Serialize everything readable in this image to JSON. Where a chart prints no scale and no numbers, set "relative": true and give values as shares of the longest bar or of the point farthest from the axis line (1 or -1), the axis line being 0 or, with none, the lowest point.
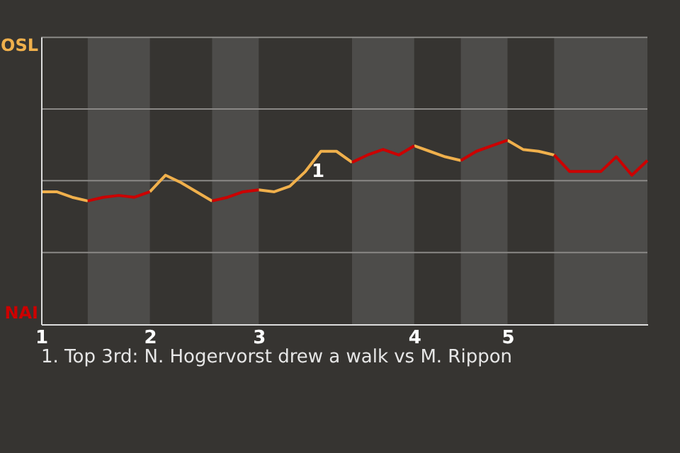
{
  "chart_data": {
    "type": "line",
    "categories": [
      "1",
      null,
      null,
      null,
      null,
      null,
      null,
      "2",
      null,
      null,
      null,
      null,
      null,
      null,
      "3",
      null,
      null,
      null,
      null,
      null,
      null,
      null,
      null,
      null,
      "4",
      null,
      null,
      null,
      null,
      null,
      "5",
      null,
      null,
      null,
      null,
      null,
      null,
      null,
      null,
      null
    ],
    "relative": true,
    "series": [
      {
        "name": "OSL",
        "color": "#f0b04c",
        "values": [
          0.72,
          0.72,
          0.69,
          0.67,
          null,
          null,
          null,
          0.72,
          0.81,
          0.77,
          0.72,
          0.67,
          null,
          null,
          0.73,
          0.72,
          0.75,
          0.83,
          0.94,
          0.94,
          0.88,
          null,
          null,
          null,
          0.97,
          0.94,
          0.91,
          0.89,
          null,
          null,
          1,
          0.95,
          0.94,
          0.92,
          null,
          null,
          null,
          null,
          null,
          null
        ]
      },
      {
        "name": "NAI",
        "color": "#cc0000",
        "values": [
          null,
          null,
          null,
          0.67,
          0.69,
          0.7,
          0.69,
          0.72,
          null,
          null,
          null,
          0.67,
          0.69,
          0.72,
          0.73,
          null,
          null,
          null,
          null,
          null,
          0.88,
          0.92,
          0.95,
          0.92,
          0.97,
          null,
          null,
          0.89,
          0.94,
          0.97,
          1,
          null,
          null,
          0.92,
          0.83,
          0.83,
          0.83,
          0.91,
          0.81,
          0.89
        ]
      }
    ],
    "tick_labels": "x",
    "ref_lines": [
      {
        "axis": "y",
        "value": 0.39,
        "color": "#8a8886"
      },
      {
        "axis": "y",
        "value": 0.78,
        "color": "#8a8886"
      },
      {
        "axis": "y",
        "value": 1.17,
        "color": "#8a8886"
      },
      {
        "axis": "y",
        "value": 1.56,
        "color": "#8a8886"
      }
    ],
    "line_style": "solid",
    "annotations": [
      {
        "text": "1",
        "y": 0.94
      },
      "1. Top 3rd: N. Hogervorst drew a walk vs M. Rippon"
    ]
  }
}
